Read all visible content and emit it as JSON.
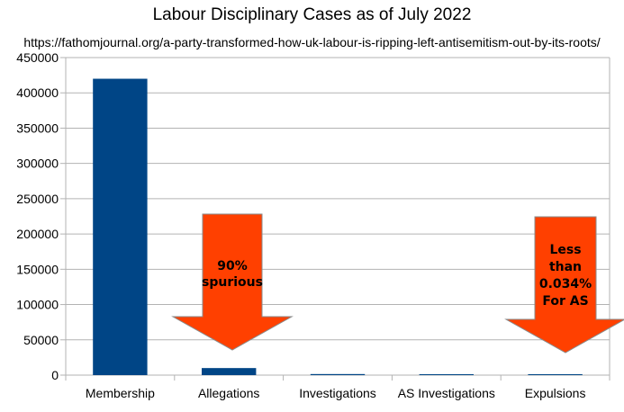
{
  "chart_data": {
    "type": "bar",
    "title": "Labour Disciplinary Cases as of July 2022",
    "subtitle": "https://fathomjournal.org/a-party-transformed-how-uk-labour-is-ripping-left-antisemitism-out-by-its-roots/",
    "categories": [
      "Membership",
      "Allegations",
      "Investigations",
      "AS Investigations",
      "Expulsions"
    ],
    "values": [
      420000,
      10000,
      1500,
      1000,
      150
    ],
    "ylim": [
      0,
      450000
    ],
    "yticks": [
      0,
      50000,
      100000,
      150000,
      200000,
      250000,
      300000,
      350000,
      400000,
      450000
    ],
    "grid": true,
    "bar_color": "#004586",
    "annotations": [
      {
        "category": "Allegations",
        "lines": [
          "90%",
          "spurious"
        ],
        "color": "#ff4000"
      },
      {
        "category": "Expulsions",
        "lines": [
          "Less",
          "than",
          "0.034%",
          "For AS"
        ],
        "color": "#ff4000"
      }
    ]
  }
}
